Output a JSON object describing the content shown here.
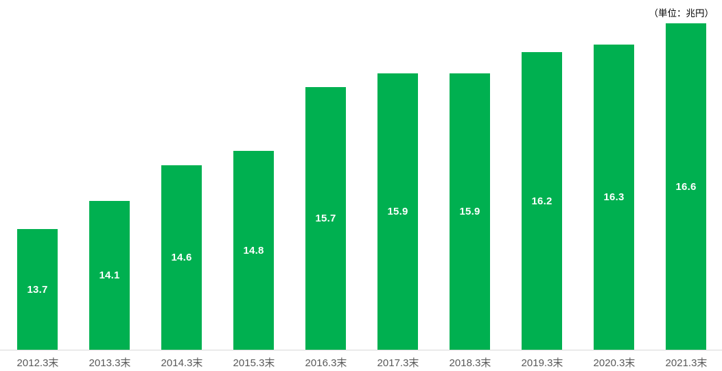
{
  "chart_data": {
    "type": "bar",
    "title": "",
    "unit_label": "（単位：兆円）",
    "categories": [
      "2012.3末",
      "2013.3末",
      "2014.3末",
      "2015.3末",
      "2016.3末",
      "2017.3末",
      "2018.3末",
      "2019.3末",
      "2020.3末",
      "2021.3末"
    ],
    "values": [
      13.7,
      14.1,
      14.6,
      14.8,
      15.7,
      15.9,
      15.9,
      16.2,
      16.3,
      16.6
    ],
    "xlabel": "",
    "ylabel": "",
    "ylim": [
      12,
      16.8
    ],
    "grid": false,
    "legend_position": "none",
    "value_label_position": "center",
    "bar_color": "#00B050",
    "value_label_color": "#FFFFFF",
    "tick_label_color": "#595959",
    "axis_line_color": "#D9D9D9"
  }
}
